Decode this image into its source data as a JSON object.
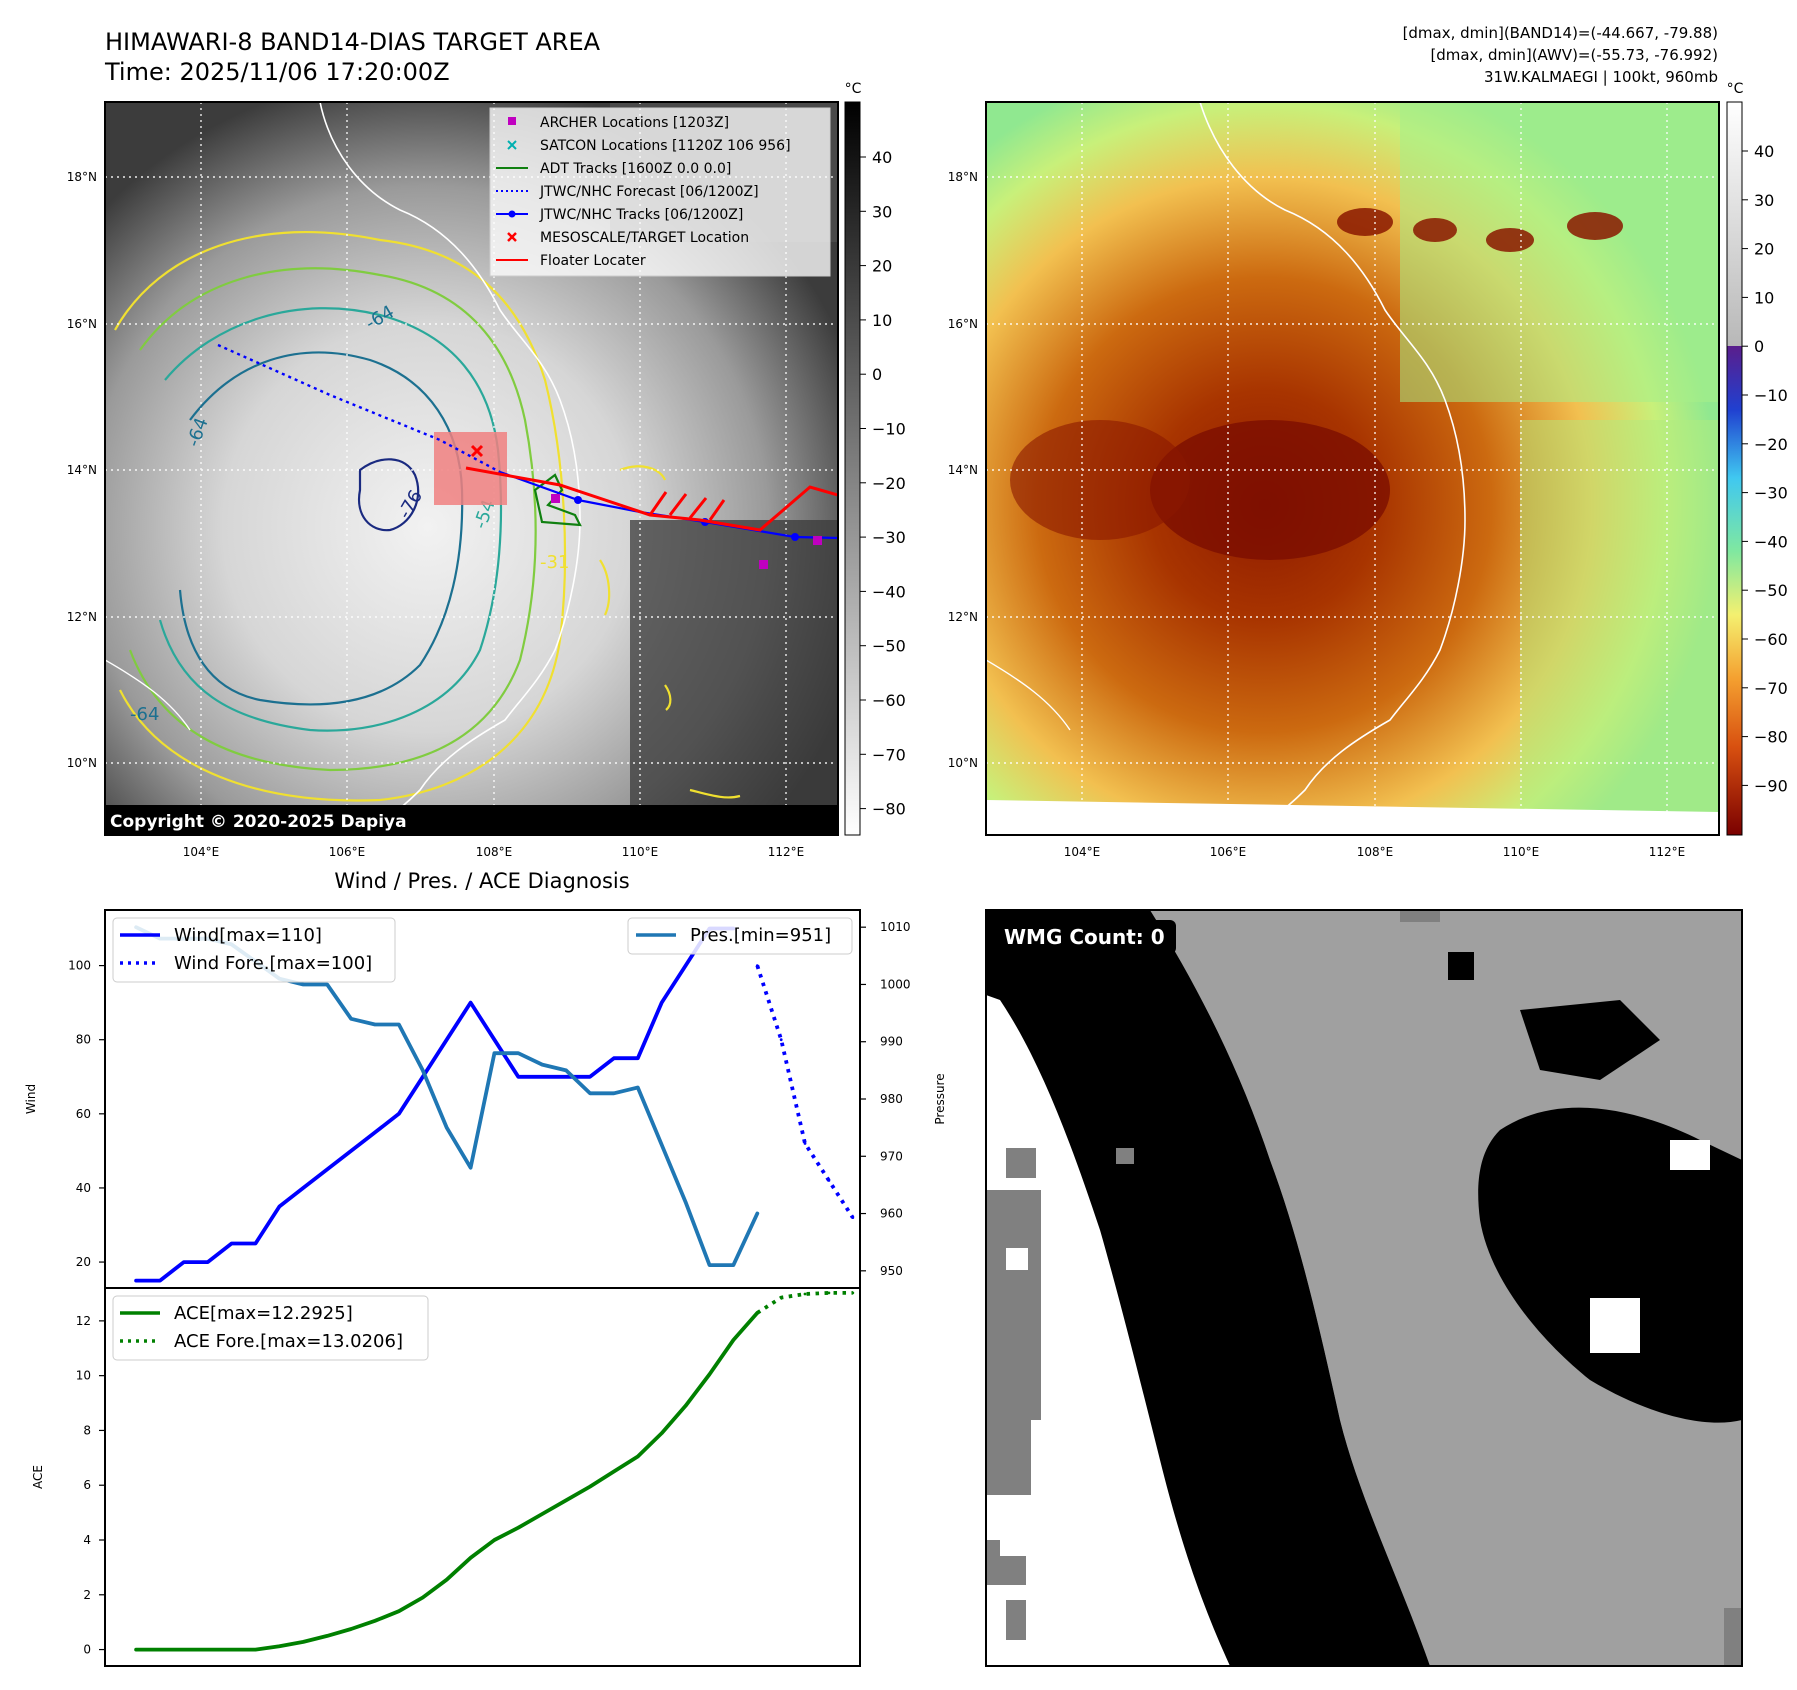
{
  "header": {
    "title_line1": "HIMAWARI-8 BAND14-DIAS TARGET AREA",
    "title_line2": "Time: 2025/11/06 17:20:00Z",
    "stats_line1": "[dmax, dmin](BAND14)=(-44.667, -79.88)",
    "stats_line2": "[dmax, dmin](AWV)=(-55.73, -76.992)",
    "stats_line3": "31W.KALMAEGI | 100kt, 960mb"
  },
  "maps": {
    "lat_labels": [
      "18°N",
      "16°N",
      "14°N",
      "12°N",
      "10°N"
    ],
    "lon_labels": [
      "104°E",
      "106°E",
      "108°E",
      "110°E",
      "112°E"
    ],
    "copyright": "Copyright © 2020-2025 Dapiya",
    "unit": "°C",
    "contour_labels": [
      "-64",
      "-76",
      "-54",
      "-31",
      "-64",
      "-64"
    ],
    "left_colorbar_ticks": [
      "40",
      "30",
      "20",
      "10",
      "0",
      "−10",
      "−20",
      "−30",
      "−40",
      "−50",
      "−60",
      "−70",
      "−80"
    ],
    "right_colorbar_ticks": [
      "40",
      "30",
      "20",
      "10",
      "0",
      "−10",
      "−20",
      "−30",
      "−40",
      "−50",
      "−60",
      "−70",
      "−80",
      "−90"
    ]
  },
  "legend": {
    "items": [
      {
        "label": "ARCHER Locations [1203Z]",
        "marker": "square",
        "color": "#c000c0"
      },
      {
        "label": "SATCON Locations [1120Z 106 956]",
        "marker": "x",
        "color": "#00b0b0"
      },
      {
        "label": "ADT Tracks [1600Z 0.0 0.0]",
        "marker": "line",
        "color": "#108010"
      },
      {
        "label": "JTWC/NHC Forecast [06/1200Z]",
        "marker": "dotted",
        "color": "#0000ff"
      },
      {
        "label": "JTWC/NHC Tracks [06/1200Z]",
        "marker": "line-dot",
        "color": "#0000ff"
      },
      {
        "label": "MESOSCALE/TARGET Location",
        "marker": "x",
        "color": "#ff0000"
      },
      {
        "label": "Floater Locater",
        "marker": "line",
        "color": "#ff0000"
      }
    ]
  },
  "wmg": {
    "label": "WMG Count: 0"
  },
  "chart_data": [
    {
      "type": "line",
      "title": "Wind / Pres. / ACE Diagnosis",
      "ylabel": "Wind",
      "y2label": "Pressure",
      "ylim": [
        13,
        115
      ],
      "y2lim": [
        947,
        1013
      ],
      "xlim": [
        -1.3,
        30.3
      ],
      "yticks": [
        20,
        40,
        60,
        80,
        100
      ],
      "y2ticks": [
        950,
        960,
        970,
        980,
        990,
        1000,
        1010
      ],
      "series": [
        {
          "name": "Wind[max=110]",
          "axis": "left",
          "color": "#0000ff",
          "style": "solid",
          "x": [
            0,
            1,
            2,
            3,
            4,
            5,
            6,
            7,
            8,
            9,
            10,
            11,
            12,
            13,
            14,
            15,
            16,
            17,
            18,
            19,
            20,
            21,
            22,
            23,
            24,
            25
          ],
          "values": [
            15,
            15,
            20,
            20,
            25,
            25,
            35,
            40,
            45,
            50,
            55,
            60,
            70,
            80,
            90,
            80,
            70,
            70,
            70,
            70,
            75,
            75,
            90,
            100,
            110,
            110
          ]
        },
        {
          "name": "Wind Fore.[max=100]",
          "axis": "left",
          "color": "#0000ff",
          "style": "dotted",
          "x": [
            26,
            27,
            28,
            29,
            30
          ],
          "values": [
            100,
            80,
            52,
            42,
            32
          ]
        },
        {
          "name": "Pres.[min=951]",
          "axis": "right",
          "color": "#1f77b4",
          "style": "solid",
          "x": [
            0,
            1,
            2,
            3,
            4,
            5,
            6,
            7,
            8,
            9,
            10,
            11,
            12,
            13,
            14,
            15,
            16,
            17,
            18,
            19,
            20,
            21,
            22,
            23,
            24,
            25,
            26
          ],
          "values": [
            1010,
            1008,
            1008,
            1008,
            1007,
            1004,
            1001,
            1000,
            1000,
            994,
            993,
            993,
            985,
            975,
            968,
            988,
            988,
            986,
            985,
            981,
            981,
            982,
            972,
            962,
            951,
            951,
            960
          ]
        }
      ]
    },
    {
      "type": "line",
      "ylabel": "ACE",
      "ylim": [
        -0.6,
        13.2
      ],
      "xlim": [
        -1.3,
        30.3
      ],
      "yticks": [
        0,
        2,
        4,
        6,
        8,
        10,
        12
      ],
      "series": [
        {
          "name": "ACE[max=12.2925]",
          "color": "#008000",
          "style": "solid",
          "x": [
            0,
            1,
            2,
            3,
            4,
            5,
            6,
            7,
            8,
            9,
            10,
            11,
            12,
            13,
            14,
            15,
            16,
            17,
            18,
            19,
            20,
            21,
            22,
            23,
            24,
            25,
            26
          ],
          "values": [
            0,
            0,
            0,
            0,
            0,
            0,
            0.12,
            0.28,
            0.5,
            0.75,
            1.05,
            1.4,
            1.9,
            2.55,
            3.35,
            4.0,
            4.45,
            4.95,
            5.45,
            5.95,
            6.5,
            7.05,
            7.9,
            8.9,
            10.05,
            11.3,
            12.29
          ]
        },
        {
          "name": "ACE Fore.[max=13.0206]",
          "color": "#008000",
          "style": "dotted",
          "x": [
            26,
            27,
            28,
            29,
            30
          ],
          "values": [
            12.29,
            12.85,
            12.98,
            13.02,
            13.02
          ]
        }
      ]
    }
  ]
}
